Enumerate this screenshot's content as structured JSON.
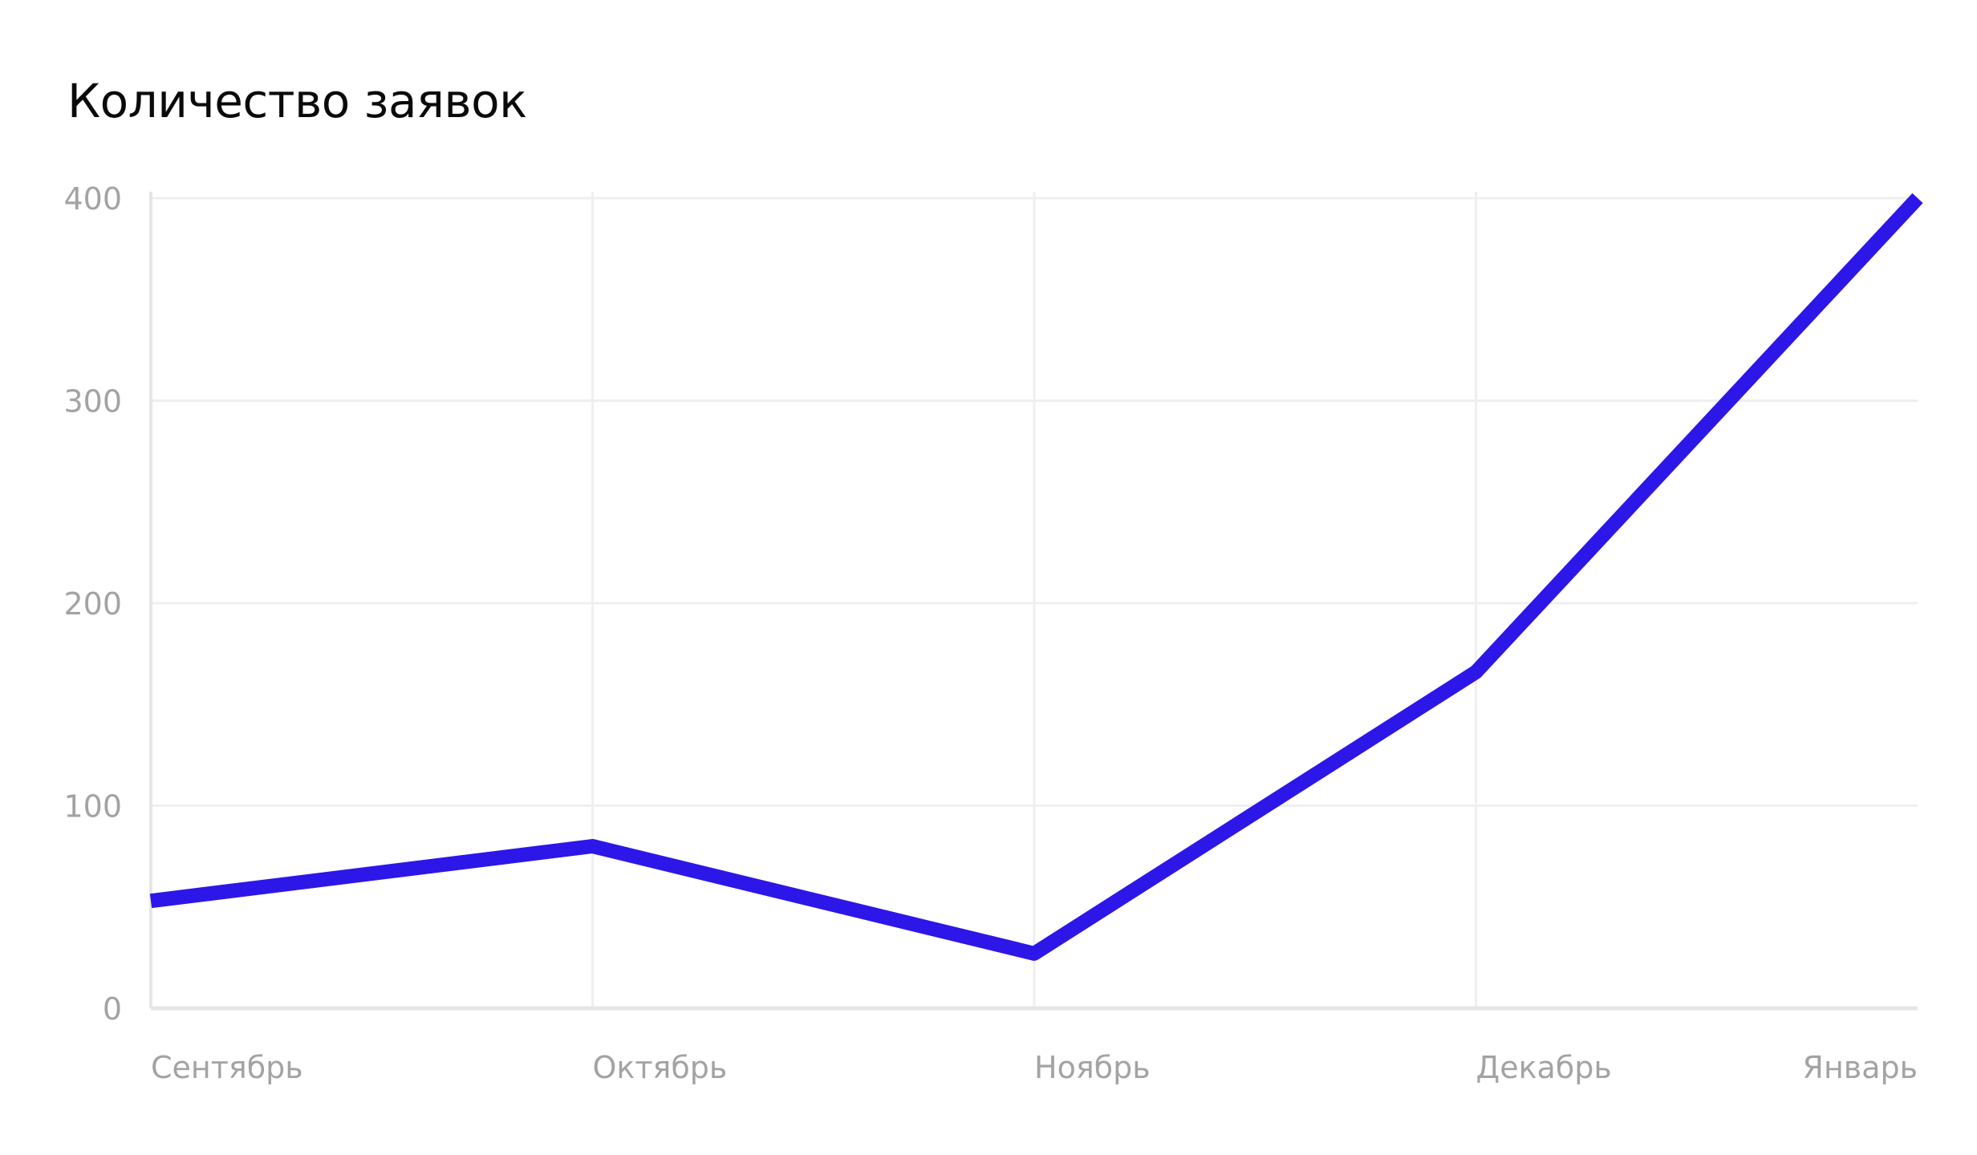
{
  "chart_data": {
    "type": "line",
    "title": "Количество заявок",
    "xlabel": "",
    "ylabel": "",
    "categories": [
      "Сентябрь",
      "Октябрь",
      "Ноябрь",
      "Декабрь",
      "Январь"
    ],
    "series": [
      {
        "values": [
          53,
          80,
          27,
          166,
          400
        ],
        "color": "#2c17e8"
      }
    ],
    "ylim": [
      0,
      400
    ],
    "yticks": [
      0,
      100,
      200,
      300,
      400
    ],
    "grid": true,
    "legend": "none",
    "colors": {
      "line": "#2c17e8",
      "grid": "#efefef",
      "axis": "#e6e6e6",
      "tick_label": "#a3a3a3",
      "title": "#0a0a0a"
    }
  }
}
